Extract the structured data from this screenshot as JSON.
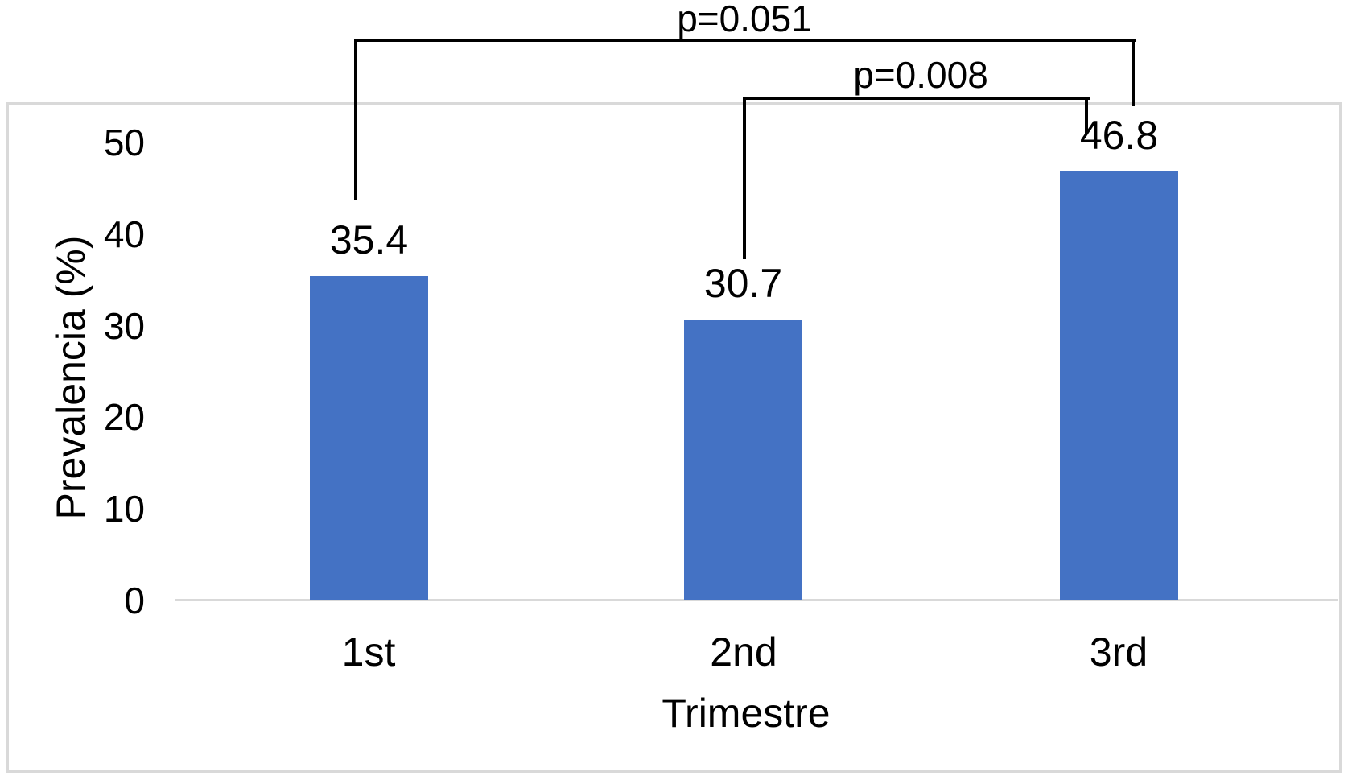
{
  "chart_data": {
    "type": "bar",
    "title": "",
    "categories": [
      "1st",
      "2nd",
      "3rd"
    ],
    "values": [
      35.4,
      30.7,
      46.8
    ],
    "value_labels": [
      "35.4",
      "30.7",
      "46.8"
    ],
    "xlabel": "Trimestre",
    "ylabel": "Prevalencia (%)",
    "ylim": [
      0,
      50
    ],
    "yticks": [
      0,
      10,
      20,
      30,
      40,
      50
    ],
    "ytick_labels": [
      "0",
      "10",
      "20",
      "30",
      "40",
      "50"
    ],
    "grid": "off",
    "legend": "none",
    "annotations": [
      {
        "label": "p=0.051",
        "between": [
          "1st",
          "3rd"
        ]
      },
      {
        "label": "p=0.008",
        "between": [
          "2nd",
          "3rd"
        ]
      }
    ]
  },
  "colors": {
    "background": "#FFFFFF",
    "bar": "#4472C4",
    "plot_border": "#D9D9D9",
    "axis_line": "#D9D9D9",
    "bracket": "#000000",
    "text": "#000000"
  }
}
